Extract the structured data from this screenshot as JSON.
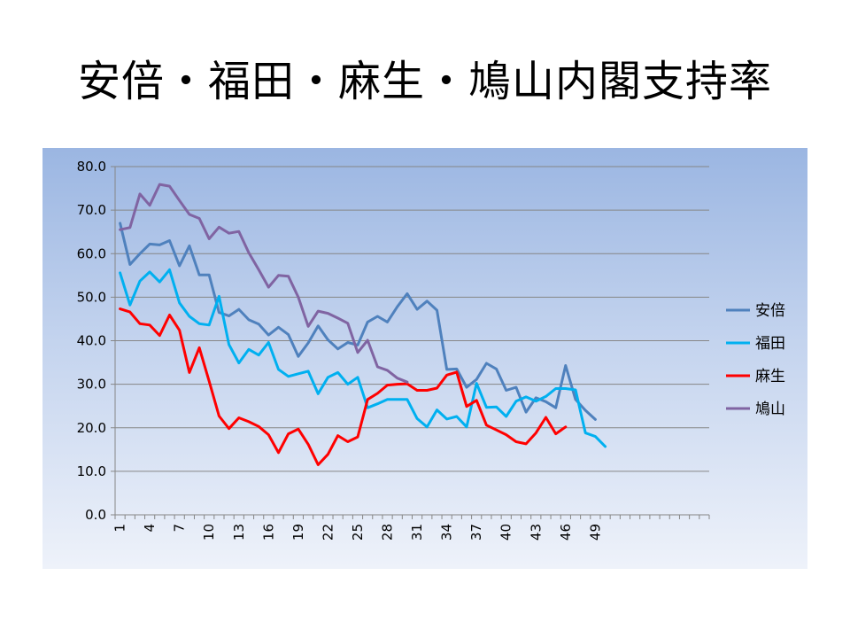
{
  "slide": {
    "title": "安倍・福田・麻生・鳩山内閣支持率"
  },
  "chart_data": {
    "type": "line",
    "title": "",
    "xlabel": "",
    "ylabel": "",
    "ylim": [
      0,
      80
    ],
    "yticks": [
      "0.0",
      "10.0",
      "20.0",
      "30.0",
      "40.0",
      "50.0",
      "60.0",
      "70.0",
      "80.0"
    ],
    "xlim": [
      1,
      60
    ],
    "xticks": [
      1,
      4,
      7,
      10,
      13,
      16,
      19,
      22,
      25,
      28,
      31,
      34,
      37,
      40,
      43,
      46,
      49
    ],
    "grid": "horizontal",
    "legend_position": "right",
    "series": [
      {
        "name": "安倍",
        "color": "#4f81bd",
        "values": [
          67.0,
          57.5,
          60.0,
          62.2,
          62.0,
          63.0,
          57.2,
          61.8,
          55.1,
          55.1,
          46.5,
          45.7,
          47.2,
          44.8,
          43.8,
          41.3,
          43.1,
          41.4,
          36.4,
          39.5,
          43.4,
          40.2,
          38.1,
          39.6,
          39.0,
          44.3,
          45.6,
          44.3,
          47.8,
          50.8,
          47.2,
          49.1,
          47.0,
          33.4,
          33.5,
          29.3,
          31.1,
          34.8,
          33.5,
          28.6,
          29.3,
          23.6,
          26.9,
          26.0,
          24.6,
          34.3,
          26.5,
          24.0,
          21.9
        ]
      },
      {
        "name": "福田",
        "color": "#00b0f0",
        "values": [
          55.6,
          48.2,
          53.7,
          55.8,
          53.5,
          56.3,
          48.7,
          45.6,
          43.9,
          43.6,
          50.2,
          39.1,
          34.9,
          38.0,
          36.7,
          39.6,
          33.4,
          31.8,
          32.4,
          33.0,
          27.8,
          31.6,
          32.7,
          30.0,
          31.6,
          24.6,
          25.5,
          26.5,
          26.5,
          26.5,
          22.1,
          20.2,
          24.1,
          22.0,
          22.6,
          20.2,
          30.2,
          24.7,
          24.8,
          22.6,
          26.1,
          27.1,
          26.1,
          27.2,
          29.0,
          29.0,
          28.7,
          18.8,
          18.0,
          15.7
        ]
      },
      {
        "name": "麻生",
        "color": "#ff0000",
        "values": [
          47.3,
          46.6,
          43.9,
          43.6,
          41.2,
          45.9,
          42.4,
          32.7,
          38.4,
          30.7,
          22.7,
          19.8,
          22.3,
          21.4,
          20.3,
          18.4,
          14.3,
          18.6,
          19.7,
          16.2,
          11.5,
          13.9,
          18.2,
          16.8,
          17.9,
          26.5,
          27.9,
          29.8,
          30.0,
          30.1,
          28.6,
          28.6,
          29.1,
          32.1,
          32.8,
          24.9,
          26.3,
          20.6,
          19.5,
          18.4,
          16.8,
          16.3,
          18.8,
          22.4,
          18.6,
          20.2
        ]
      },
      {
        "name": "鳩山",
        "color": "#8064a2",
        "values": [
          65.5,
          66.0,
          73.7,
          71.1,
          75.9,
          75.5,
          72.2,
          69.0,
          68.1,
          63.4,
          66.1,
          64.7,
          65.1,
          60.2,
          56.3,
          52.3,
          55.0,
          54.8,
          50.0,
          43.3,
          46.8,
          46.3,
          45.2,
          44.0,
          37.3,
          40.1,
          34.0,
          33.2,
          31.4,
          30.5
        ]
      }
    ]
  }
}
